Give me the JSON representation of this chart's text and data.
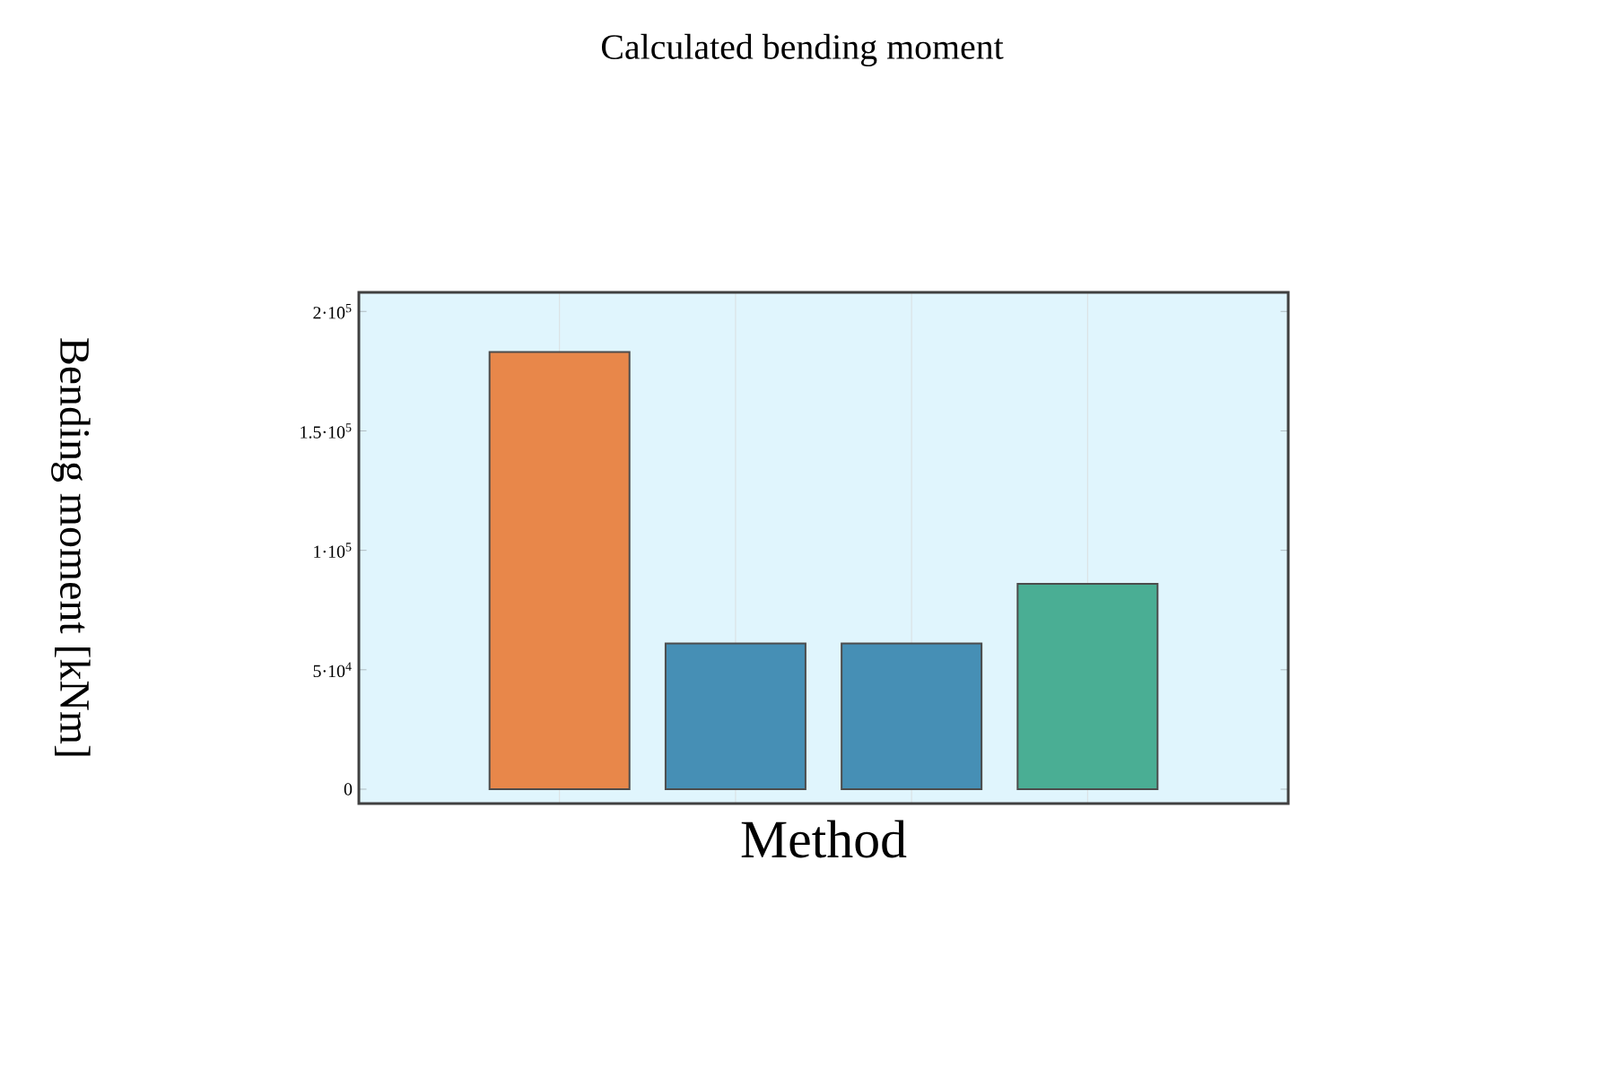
{
  "chart_data": {
    "type": "bar",
    "title": "Calculated bending moment",
    "xlabel": "Method",
    "ylabel": "Bending moment [kNm]",
    "categories": [
      null,
      null,
      null,
      null
    ],
    "values": [
      183000,
      61000,
      61000,
      86000
    ],
    "colors": [
      "#e8874a",
      "#468fb5",
      "#468fb5",
      "#4aae94"
    ],
    "ylim": [
      -6000,
      208000
    ],
    "yticks": [
      0,
      {
        "value": 50000,
        "label": "5·10$^{4}$"
      },
      {
        "value": 100000,
        "label": "1·10$^{5}$"
      },
      {
        "value": 150000,
        "label": "1.5·10$^{5}$"
      },
      {
        "value": 200000,
        "label": "2·10$^{5}$"
      }
    ],
    "grid": "x"
  }
}
